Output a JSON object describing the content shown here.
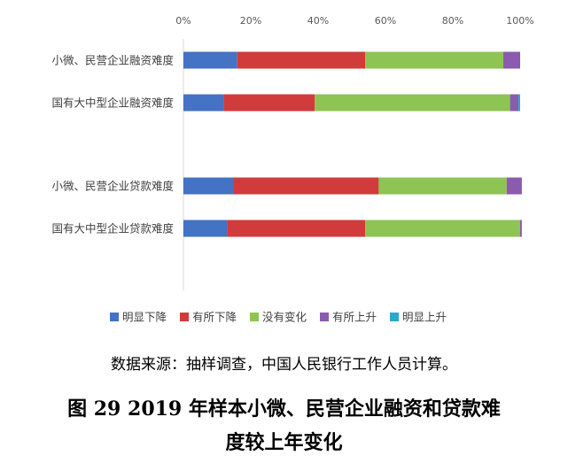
{
  "chart_data": {
    "type": "bar",
    "orientation": "horizontal",
    "stacked": true,
    "x_ticks": [
      "0%",
      "20%",
      "40%",
      "60%",
      "80%",
      "100%"
    ],
    "xlim": [
      0,
      100
    ],
    "categories": [
      "小微、民营企业融资难度",
      "国有大中型企业融资难度",
      "小微、民营企业贷款难度",
      "国有大中型企业贷款难度"
    ],
    "series": [
      {
        "name": "明显下降",
        "color": "#4472C4",
        "values": [
          16,
          12,
          15,
          13
        ]
      },
      {
        "name": "有所下降",
        "color": "#D13B3B",
        "values": [
          38,
          27,
          43,
          41
        ]
      },
      {
        "name": "没有变化",
        "color": "#8DC453",
        "values": [
          41,
          58,
          38,
          46
        ]
      },
      {
        "name": "有所上升",
        "color": "#8B5BAF",
        "values": [
          5,
          2.5,
          4.5,
          0.5
        ]
      },
      {
        "name": "明显上升",
        "color": "#2BA7C9",
        "values": [
          0,
          0.5,
          0,
          0
        ]
      }
    ],
    "legend_position": "bottom",
    "grid": false
  },
  "source_text": "数据来源：抽样调查，中国人民银行工作人员计算。",
  "caption_line1": "图 29 2019 年样本小微、民营企业融资和贷款难",
  "caption_line2": "度较上年变化"
}
